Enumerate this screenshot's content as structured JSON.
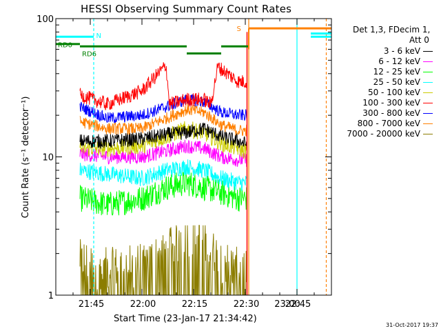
{
  "chart_data": {
    "type": "line",
    "title": "HESSI Observing Summary Count Rates",
    "xlabel": "Start Time (23-Jan-17 21:34:42)",
    "ylabel": "Count Rate (s⁻¹ detector⁻¹)",
    "yscale": "log",
    "ylim": [
      1,
      100
    ],
    "xlim_minutes": [
      0,
      80
    ],
    "xtick_labels": [
      "21:45",
      "22:00",
      "22:15",
      "22:30",
      "22:45",
      "23:00"
    ],
    "ytick_labels": [
      "1",
      "10",
      "100"
    ],
    "legend_header": [
      "Det 1,3, FDecim 1,",
      "Att 0"
    ],
    "timestamp": "31-Oct-2017 19:37",
    "series": [
      {
        "name": "3 - 6 keV",
        "color": "#000000",
        "data": [
          [
            7,
            13
          ],
          [
            15,
            13
          ],
          [
            25,
            13.5
          ],
          [
            32,
            14.5
          ],
          [
            38,
            15
          ],
          [
            43,
            16
          ],
          [
            48,
            14
          ],
          [
            53,
            13
          ],
          [
            55,
            12.5
          ]
        ]
      },
      {
        "name": "6 - 12 keV",
        "color": "#ff00ff",
        "data": [
          [
            7,
            10.5
          ],
          [
            15,
            10
          ],
          [
            25,
            10
          ],
          [
            32,
            11
          ],
          [
            38,
            12
          ],
          [
            43,
            11.5
          ],
          [
            48,
            10
          ],
          [
            53,
            9.5
          ],
          [
            55,
            9.5
          ]
        ]
      },
      {
        "name": "12 - 25 keV",
        "color": "#00ff00",
        "data": [
          [
            7,
            5
          ],
          [
            15,
            4.5
          ],
          [
            25,
            5
          ],
          [
            32,
            6
          ],
          [
            38,
            6.5
          ],
          [
            43,
            6
          ],
          [
            48,
            5.5
          ],
          [
            53,
            5
          ],
          [
            55,
            5
          ]
        ]
      },
      {
        "name": "25 - 50 keV",
        "color": "#00ffff",
        "data": [
          [
            7,
            8
          ],
          [
            15,
            7.5
          ],
          [
            25,
            7
          ],
          [
            32,
            8
          ],
          [
            38,
            8.5
          ],
          [
            43,
            8
          ],
          [
            48,
            7
          ],
          [
            53,
            6.5
          ],
          [
            55,
            6.5
          ]
        ]
      },
      {
        "name": "50 - 100 keV",
        "color": "#cccc00",
        "data": [
          [
            7,
            11.5
          ],
          [
            15,
            11.5
          ],
          [
            25,
            12
          ],
          [
            32,
            14
          ],
          [
            38,
            16
          ],
          [
            43,
            15
          ],
          [
            48,
            12.5
          ],
          [
            53,
            11.5
          ],
          [
            55,
            11
          ]
        ]
      },
      {
        "name": "100 - 300 keV",
        "color": "#ff0000",
        "data": [
          [
            7,
            28
          ],
          [
            15,
            24
          ],
          [
            25,
            30
          ],
          [
            32,
            46
          ],
          [
            33,
            24
          ],
          [
            38,
            26
          ],
          [
            43,
            26
          ],
          [
            45,
            24
          ],
          [
            47,
            45
          ],
          [
            53,
            35
          ],
          [
            55,
            35
          ]
        ]
      },
      {
        "name": "300 - 800 keV",
        "color": "#0000ff",
        "data": [
          [
            7,
            23
          ],
          [
            15,
            19
          ],
          [
            25,
            20
          ],
          [
            32,
            23
          ],
          [
            38,
            26
          ],
          [
            43,
            25
          ],
          [
            48,
            21
          ],
          [
            53,
            20
          ],
          [
            55,
            20
          ]
        ]
      },
      {
        "name": "800 - 7000 keV",
        "color": "#ff8000",
        "data": [
          [
            7,
            18
          ],
          [
            15,
            16
          ],
          [
            25,
            16
          ],
          [
            32,
            19
          ],
          [
            38,
            22
          ],
          [
            43,
            21
          ],
          [
            48,
            17
          ],
          [
            53,
            15.5
          ],
          [
            55,
            15.5
          ]
        ]
      },
      {
        "name": "7000 - 20000 keV",
        "color": "#8b7d00",
        "data": [
          [
            7,
            1.5
          ],
          [
            15,
            1.3
          ],
          [
            25,
            1.4
          ],
          [
            32,
            1.7
          ],
          [
            38,
            2.4
          ],
          [
            43,
            2.0
          ],
          [
            48,
            1.5
          ],
          [
            53,
            1.3
          ],
          [
            55,
            1.3
          ]
        ]
      }
    ],
    "annotations": [
      {
        "text": "RD0",
        "color": "#008000",
        "y": 60
      },
      {
        "text": "RD6",
        "color": "#008000",
        "y": 60
      },
      {
        "text": "N",
        "color": "#00ffff",
        "y": 75
      },
      {
        "text": "S",
        "color": "#ff8000",
        "y": 85
      }
    ],
    "state_bars": {
      "green_segments_minutes": [
        [
          0,
          7
        ],
        [
          7,
          38
        ],
        [
          38,
          48
        ],
        [
          48,
          56
        ]
      ],
      "cyan_segments_minutes": [
        [
          0,
          11
        ],
        [
          74,
          80
        ]
      ],
      "orange_segments_minutes": [
        [
          56,
          80
        ]
      ]
    },
    "vertical_markers_minutes": [
      {
        "t": 11,
        "color": "#00ffff",
        "style": "dashed"
      },
      {
        "t": 56,
        "color": "#ff8000",
        "style": "solid"
      },
      {
        "t": 70,
        "color": "#00ffff",
        "style": "solid"
      },
      {
        "t": 78.5,
        "color": "#ff8000",
        "style": "dashed"
      }
    ],
    "data_window_minutes": [
      7,
      55.5
    ]
  }
}
